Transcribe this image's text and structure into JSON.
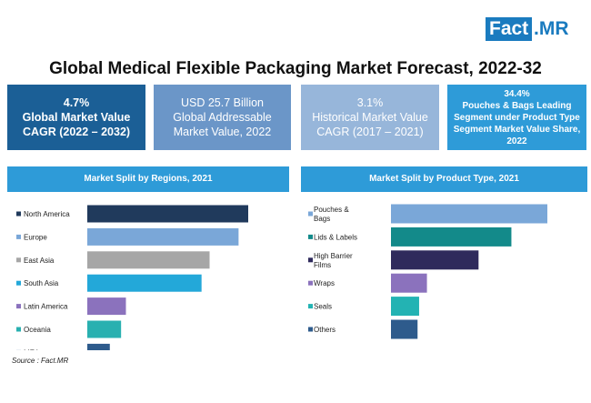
{
  "logo": {
    "left": "Fact",
    "right": ".MR"
  },
  "title": "Global Medical Flexible Packaging Market Forecast, 2022-32",
  "kpis": [
    {
      "value": "4.7%",
      "desc": "Global Market Value CAGR (2022 – 2032)"
    },
    {
      "value": "USD 25.7 Billion",
      "desc": "Global Addressable Market Value, 2022"
    },
    {
      "value": "3.1%",
      "desc": "Historical Market Value CAGR (2017 – 2021)"
    },
    {
      "value": "34.4%",
      "desc": "Pouches & Bags Leading Segment under Product Type Segment Market Value Share, 2022"
    }
  ],
  "source": "Source : Fact.MR",
  "chart_data": [
    {
      "type": "bar",
      "orientation": "horizontal",
      "title": "Market Split by Regions, 2021",
      "categories": [
        "North America",
        "Europe",
        "East Asia",
        "South Asia",
        "Latin America",
        "Oceania",
        "MEA"
      ],
      "values": [
        100,
        94,
        76,
        71,
        24,
        21,
        14
      ],
      "colors": [
        "#203a5c",
        "#7aa7d8",
        "#a6a6a6",
        "#23a8d9",
        "#8b72bd",
        "#29b0b0",
        "#2e5b8c"
      ],
      "legend": "left"
    },
    {
      "type": "bar",
      "orientation": "horizontal",
      "title": "Market Split by Product Type, 2021",
      "categories": [
        "Pouches & Bags",
        "Lids & Labels",
        "High Barrier Films",
        "Wraps",
        "Seals",
        "Others"
      ],
      "values": [
        100,
        77,
        56,
        23,
        18,
        17
      ],
      "colors": [
        "#7aa7d8",
        "#138a8a",
        "#2f2a5c",
        "#8b72bd",
        "#23b3b3",
        "#2e5b8c"
      ],
      "legend": "left"
    }
  ]
}
